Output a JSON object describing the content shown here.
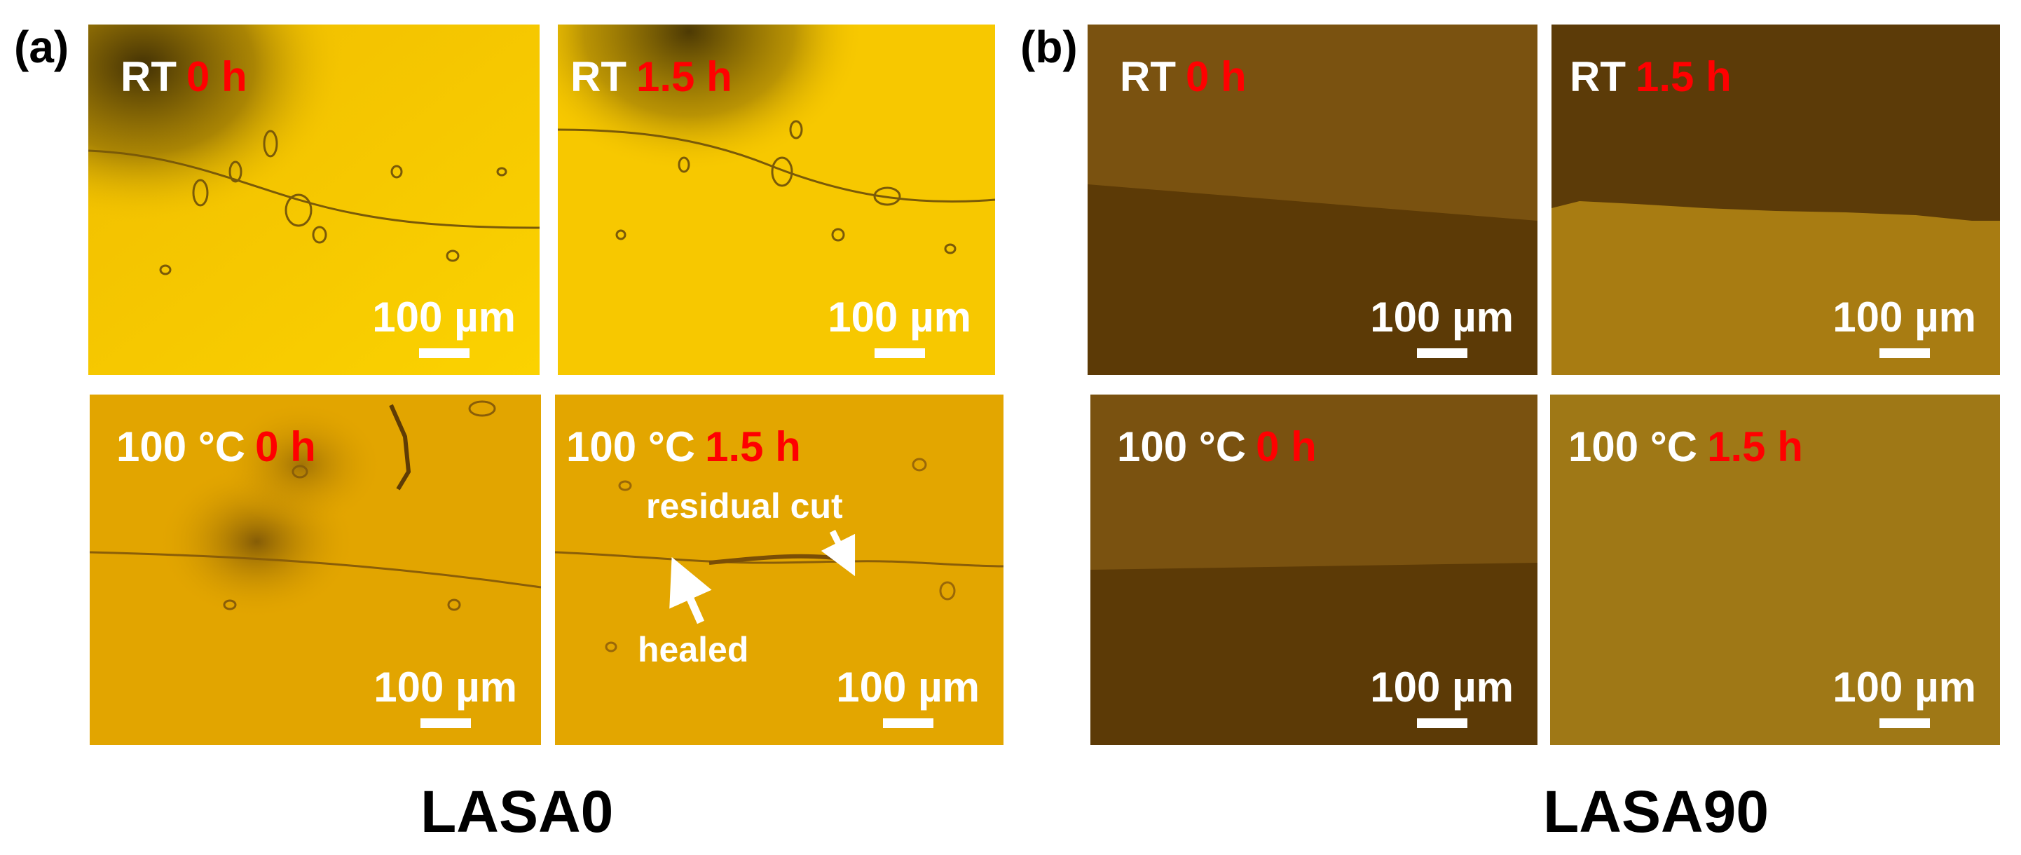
{
  "panels": {
    "a": {
      "label": "(a)",
      "material": "LASA0"
    },
    "b": {
      "label": "(b)",
      "material": "LASA90"
    }
  },
  "images": {
    "a_rt_0": {
      "temp": "RT",
      "time": "0 h",
      "scale": "100 µm"
    },
    "a_rt_15": {
      "temp": "RT",
      "time": "1.5 h",
      "scale": "100 µm"
    },
    "a_100_0": {
      "temp": "100 °C",
      "time": "0 h",
      "scale": "100 µm"
    },
    "a_100_15": {
      "temp": "100 °C",
      "time": "1.5 h",
      "scale": "100 µm"
    },
    "b_rt_0": {
      "temp": "RT",
      "time": "0 h",
      "scale": "100 µm"
    },
    "b_rt_15": {
      "temp": "RT",
      "time": "1.5 h",
      "scale": "100 µm"
    },
    "b_100_0": {
      "temp": "100 °C",
      "time": "0 h",
      "scale": "100 µm"
    },
    "b_100_15": {
      "temp": "100 °C",
      "time": "1.5 h",
      "scale": "100 µm"
    }
  },
  "annotations": {
    "residual_cut": "residual cut",
    "healed": "healed"
  },
  "colors": {
    "condition_text": "#ffffff",
    "time_text": "#ff0000",
    "lasa0_rt": "#f5c400",
    "lasa0_100c": "#e2a300",
    "lasa90_dark": "#5e3b07",
    "lasa90_light": "#7d5510"
  }
}
